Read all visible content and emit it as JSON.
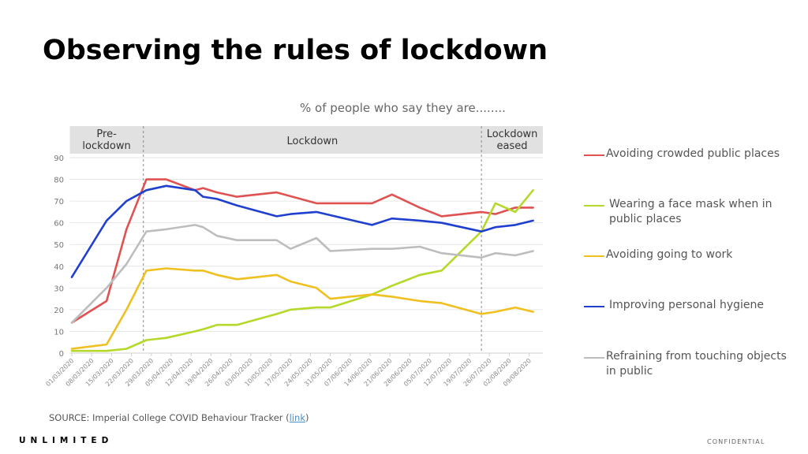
{
  "slide": {
    "title": "Observing the rules of lockdown",
    "subtitle": "% of people who say they are........",
    "source_prefix": "SOURCE: Imperial College COVID Behaviour Tracker (",
    "source_link": "link",
    "source_suffix": ")",
    "brand": "UNLIMITED",
    "confidential": "CONFIDENTIAL"
  },
  "chart_data": {
    "type": "line",
    "title": "% of people who say they are........",
    "xlabel": "",
    "ylabel": "",
    "ylim": [
      0,
      90
    ],
    "yticks": [
      0,
      10,
      20,
      30,
      40,
      50,
      60,
      70,
      80,
      90
    ],
    "grid": true,
    "legend_position": "right",
    "x_tick_labels": [
      "01/03/2020",
      "08/03/2020",
      "15/03/2020",
      "22/03/2020",
      "29/03/2020",
      "05/04/2020",
      "12/04/2020",
      "19/04/2020",
      "26/04/2020",
      "03/05/2020",
      "10/05/2020",
      "17/05/2020",
      "24/05/2020",
      "31/05/2020",
      "07/06/2020",
      "14/06/2020",
      "21/06/2020",
      "28/06/2020",
      "05/07/2020",
      "12/07/2020",
      "19/07/2020",
      "26/07/2020",
      "02/08/2020",
      "09/08/2020"
    ],
    "x_unit_note": "x values are in weeks since 01/03/2020",
    "phases": [
      {
        "label": "Pre-\nlockdown",
        "start": -0.1,
        "end": 3.6
      },
      {
        "label": "Lockdown",
        "start": 3.6,
        "end": 20.6
      },
      {
        "label": "Lockdown\neased",
        "start": 20.6,
        "end": 23.9
      }
    ],
    "phase_dividers": [
      3.6,
      20.6
    ],
    "series": [
      {
        "name": "Avoiding crowded public places",
        "color": "#e05252",
        "x": [
          0,
          1.75,
          2.75,
          3.75,
          4.75,
          6.2,
          6.6,
          7.3,
          8.3,
          10.3,
          12.3,
          15.1,
          16.1,
          17.5,
          18.6,
          20.6,
          21.3,
          22.3,
          23.2
        ],
        "values": [
          14,
          24,
          57,
          80,
          80,
          75,
          76,
          74,
          72,
          74,
          69,
          69,
          73,
          67,
          63,
          65,
          64,
          67,
          67
        ]
      },
      {
        "name": "Wearing a face mask when in public places",
        "color": "#b5d92a",
        "x": [
          0,
          1.75,
          2.75,
          3.75,
          4.75,
          6.2,
          6.6,
          7.3,
          8.3,
          10.3,
          11,
          12.3,
          13,
          15.1,
          16.1,
          17.5,
          18.6,
          20.6,
          21.3,
          22.3,
          23.2
        ],
        "values": [
          1,
          1,
          2,
          6,
          7,
          10,
          11,
          13,
          13,
          18,
          20,
          21,
          21,
          27,
          31,
          36,
          38,
          56,
          69,
          65,
          75
        ]
      },
      {
        "name": "Avoiding going to work",
        "color": "#f0c020",
        "x": [
          0,
          1.75,
          2.75,
          3.75,
          4.75,
          6.2,
          6.6,
          7.3,
          8.3,
          10.3,
          11,
          12.3,
          13,
          15.1,
          16.1,
          17.5,
          18.6,
          20.6,
          21.3,
          22.3,
          23.2
        ],
        "values": [
          2,
          4,
          20,
          38,
          39,
          38,
          38,
          36,
          34,
          36,
          33,
          30,
          25,
          27,
          26,
          24,
          23,
          18,
          19,
          21,
          19
        ]
      },
      {
        "name": "Improving personal hygiene",
        "color": "#1f3fcf",
        "x": [
          0,
          1.75,
          2.75,
          3.75,
          4.75,
          6.2,
          6.6,
          7.3,
          8.3,
          10.3,
          11,
          12.3,
          15.1,
          16.1,
          17.5,
          18.6,
          20.6,
          21.3,
          22.3,
          23.2
        ],
        "values": [
          35,
          61,
          70,
          75,
          77,
          75,
          72,
          71,
          68,
          63,
          64,
          65,
          59,
          62,
          61,
          60,
          56,
          58,
          59,
          61
        ]
      },
      {
        "name": "Refraining from touching objects in public",
        "color": "#bdbdbd",
        "x": [
          0,
          1.75,
          2.75,
          3.75,
          4.75,
          6.2,
          6.6,
          7.3,
          8.3,
          10.3,
          11,
          12.3,
          13,
          15.1,
          16.1,
          17.5,
          18.6,
          20.6,
          21.3,
          22.3,
          23.2
        ],
        "values": [
          14,
          30,
          41,
          56,
          57,
          59,
          58,
          54,
          52,
          52,
          48,
          53,
          47,
          48,
          48,
          49,
          46,
          44,
          46,
          45,
          47
        ]
      }
    ]
  }
}
